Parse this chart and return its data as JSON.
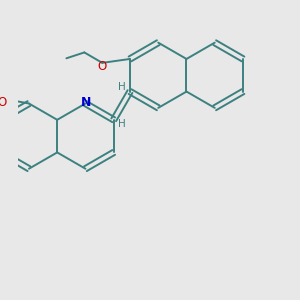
{
  "bg_color": "#e8e8e8",
  "bond_color": "#3d8080",
  "N_color": "#0000cc",
  "O_color": "#cc0000",
  "text_color": "#3d8080",
  "lw": 1.4,
  "font_size": 7.5,
  "figsize": [
    3.0,
    3.0
  ],
  "dpi": 100,
  "xlim": [
    0.5,
    6.5
  ],
  "ylim": [
    1.0,
    7.5
  ]
}
